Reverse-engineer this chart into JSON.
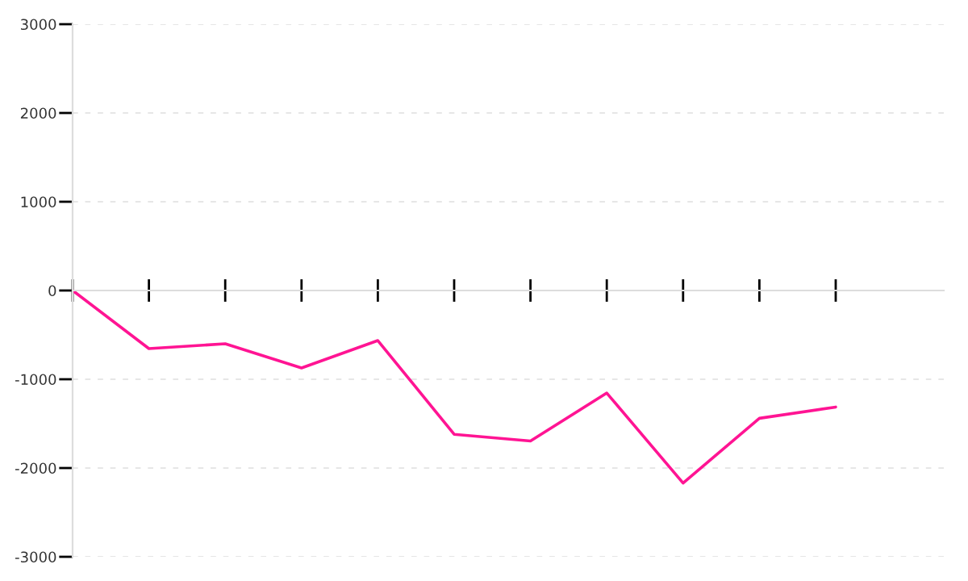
{
  "chart_data": {
    "type": "line",
    "categories": [
      null,
      null,
      null,
      null,
      null,
      null,
      null,
      null,
      null,
      null,
      null
    ],
    "series": [
      {
        "color": "#ff1493",
        "values": [
          0,
          -655,
          -600,
          -873,
          -564,
          -1620,
          -1695,
          -1155,
          -2170,
          -1440,
          -1313
        ]
      }
    ],
    "ylim": [
      -3000,
      3000
    ],
    "yticks": [
      -3000,
      -2000,
      -1000,
      0,
      1000,
      2000,
      3000
    ],
    "tick_labels": "y",
    "grid": "y",
    "marker": "none",
    "line_style": "solid"
  }
}
